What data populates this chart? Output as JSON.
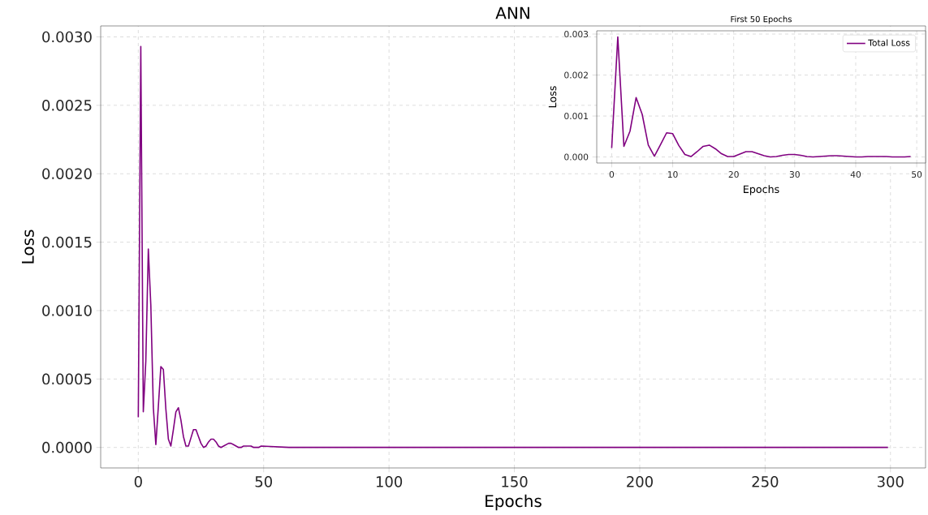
{
  "chart_data": [
    {
      "type": "line",
      "title": "ANN",
      "xlabel": "Epochs",
      "ylabel": "Loss",
      "xlim": [
        -15,
        314
      ],
      "ylim": [
        -0.00015,
        0.00308
      ],
      "xticks": [
        0,
        50,
        100,
        150,
        200,
        250,
        300
      ],
      "yticks": [
        {
          "value": 0,
          "label": "0.0000"
        },
        {
          "value": 0.0005,
          "label": "0.0005"
        },
        {
          "value": 0.001,
          "label": "0.0010"
        },
        {
          "value": 0.0015,
          "label": "0.0015"
        },
        {
          "value": 0.002,
          "label": "0.0020"
        },
        {
          "value": 0.0025,
          "label": "0.0025"
        },
        {
          "value": 0.003,
          "label": "0.0030"
        }
      ],
      "grid": true,
      "x": [
        0,
        1,
        2,
        3,
        4,
        5,
        6,
        7,
        8,
        9,
        10,
        11,
        12,
        13,
        14,
        15,
        16,
        17,
        18,
        19,
        20,
        21,
        22,
        23,
        24,
        25,
        26,
        27,
        28,
        29,
        30,
        31,
        32,
        33,
        34,
        35,
        36,
        37,
        38,
        39,
        40,
        41,
        42,
        43,
        44,
        45,
        46,
        47,
        48,
        49,
        60,
        80,
        100,
        150,
        200,
        250,
        299
      ],
      "series": [
        {
          "color": "#800080",
          "values": [
            0.00022,
            0.00293,
            0.00026,
            0.00063,
            0.00145,
            0.00104,
            0.00029,
            2e-05,
            0.0003,
            0.00059,
            0.00057,
            0.00028,
            6e-05,
            1e-05,
            0.00013,
            0.00026,
            0.00029,
            0.0002,
            8e-05,
            1e-05,
            1e-05,
            7e-05,
            0.00013,
            0.00013,
            8e-05,
            3e-05,
            0.0,
            1e-05,
            4e-05,
            6e-05,
            6e-05,
            4e-05,
            1e-05,
            0.0,
            1e-05,
            2e-05,
            3e-05,
            3e-05,
            2e-05,
            1e-05,
            0.0,
            0.0,
            1e-05,
            1e-05,
            1e-05,
            1e-05,
            0.0,
            0.0,
            0.0,
            1e-05,
            0.0,
            0.0,
            0.0,
            0.0,
            0.0,
            0.0,
            0.0
          ]
        }
      ]
    },
    {
      "type": "line",
      "title": "First 50 Epochs",
      "xlabel": "Epochs",
      "ylabel": "Loss",
      "xlim": [
        -2.45,
        51.45
      ],
      "ylim": [
        -0.000147,
        0.00308
      ],
      "xticks": [
        0,
        10,
        20,
        30,
        40,
        50
      ],
      "yticks": [
        {
          "value": 0,
          "label": "0.000"
        },
        {
          "value": 0.001,
          "label": "0.001"
        },
        {
          "value": 0.002,
          "label": "0.002"
        },
        {
          "value": 0.003,
          "label": "0.003"
        }
      ],
      "grid": true,
      "legend": "top right",
      "x": [
        0,
        1,
        2,
        3,
        4,
        5,
        6,
        7,
        8,
        9,
        10,
        11,
        12,
        13,
        14,
        15,
        16,
        17,
        18,
        19,
        20,
        21,
        22,
        23,
        24,
        25,
        26,
        27,
        28,
        29,
        30,
        31,
        32,
        33,
        34,
        35,
        36,
        37,
        38,
        39,
        40,
        41,
        42,
        43,
        44,
        45,
        46,
        47,
        48,
        49
      ],
      "series": [
        {
          "name": "Total Loss",
          "color": "#800080",
          "values": [
            0.00022,
            0.00293,
            0.00026,
            0.00063,
            0.00145,
            0.00104,
            0.00029,
            2e-05,
            0.0003,
            0.00059,
            0.00057,
            0.00028,
            6e-05,
            1e-05,
            0.00013,
            0.00026,
            0.00029,
            0.0002,
            8e-05,
            1e-05,
            1e-05,
            7e-05,
            0.00013,
            0.00013,
            8e-05,
            3e-05,
            0.0,
            1e-05,
            4e-05,
            6e-05,
            6e-05,
            4e-05,
            1e-05,
            0.0,
            1e-05,
            2e-05,
            3e-05,
            3e-05,
            2e-05,
            1e-05,
            0.0,
            0.0,
            1e-05,
            1e-05,
            1e-05,
            1e-05,
            0.0,
            0.0,
            0.0,
            1e-05
          ]
        }
      ]
    }
  ]
}
